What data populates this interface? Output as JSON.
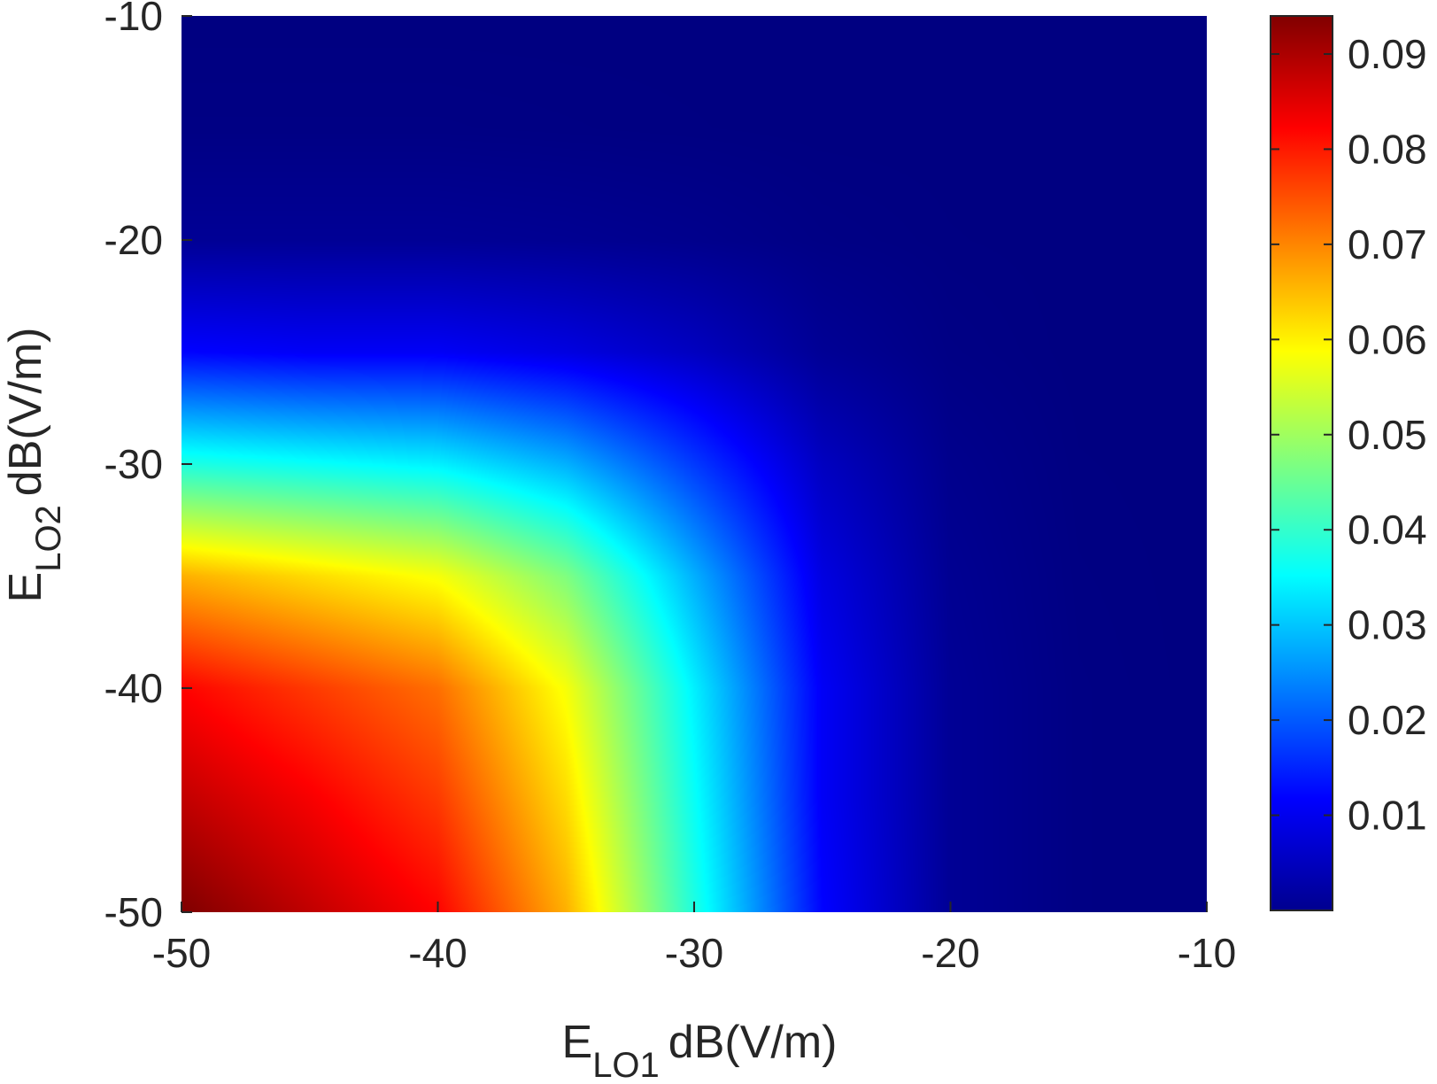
{
  "chart_data": {
    "type": "heatmap",
    "title": "",
    "colormap": "jet",
    "xlabel": {
      "main": "E",
      "sub": "LO1",
      "unit": "dB(V/m)"
    },
    "ylabel": {
      "main": "E",
      "sub": "LO2",
      "unit": "dB(V/m)"
    },
    "xlim": [
      -50,
      -10
    ],
    "ylim": [
      -50,
      -10
    ],
    "x_ticks": [
      -50,
      -40,
      -30,
      -20,
      -10
    ],
    "y_ticks": [
      -50,
      -40,
      -30,
      -20,
      -10
    ],
    "x_tick_labels": [
      "-50",
      "-40",
      "-30",
      "-20",
      "-10"
    ],
    "y_tick_labels": [
      "-50",
      "-40",
      "-30",
      "-20",
      "-10"
    ],
    "colorbar": {
      "clim": [
        0,
        0.094
      ],
      "ticks": [
        0.01,
        0.02,
        0.03,
        0.04,
        0.05,
        0.06,
        0.07,
        0.08,
        0.09
      ],
      "tick_labels": [
        "0.01",
        "0.02",
        "0.03",
        "0.04",
        "0.05",
        "0.06",
        "0.07",
        "0.08",
        "0.09"
      ]
    },
    "z_peak": 0.094,
    "z_peak_location": {
      "x": -50,
      "y": -50
    },
    "approx_field": {
      "x": [
        -50,
        -45,
        -40,
        -35,
        -30,
        -25,
        -20,
        -15,
        -10
      ],
      "y": [
        -50,
        -45,
        -40,
        -35,
        -30,
        -25,
        -20,
        -15,
        -10
      ],
      "z_note_rows_are_y": "z[i][j] at y[i], x[j]",
      "z": [
        [
          0.094,
          0.088,
          0.082,
          0.066,
          0.038,
          0.012,
          0.002,
          0.0004,
          0.0001
        ],
        [
          0.088,
          0.083,
          0.077,
          0.062,
          0.036,
          0.011,
          0.002,
          0.0004,
          0.0001
        ],
        [
          0.082,
          0.077,
          0.072,
          0.058,
          0.034,
          0.011,
          0.002,
          0.0004,
          0.0001
        ],
        [
          0.066,
          0.062,
          0.058,
          0.047,
          0.028,
          0.009,
          0.0017,
          0.0003,
          0.0001
        ],
        [
          0.038,
          0.036,
          0.034,
          0.028,
          0.017,
          0.006,
          0.0012,
          0.0002,
          0.0001
        ],
        [
          0.012,
          0.011,
          0.011,
          0.009,
          0.006,
          0.002,
          0.0005,
          0.0001,
          0.0001
        ],
        [
          0.002,
          0.002,
          0.002,
          0.0017,
          0.0012,
          0.0005,
          0.0002,
          0.0001,
          0.0001
        ],
        [
          0.0004,
          0.0004,
          0.0004,
          0.0003,
          0.0002,
          0.0001,
          0.0001,
          0.0001,
          0.0001
        ],
        [
          0.0001,
          0.0001,
          0.0001,
          0.0001,
          0.0001,
          0.0001,
          0.0001,
          0.0001,
          0.0001
        ]
      ]
    }
  }
}
